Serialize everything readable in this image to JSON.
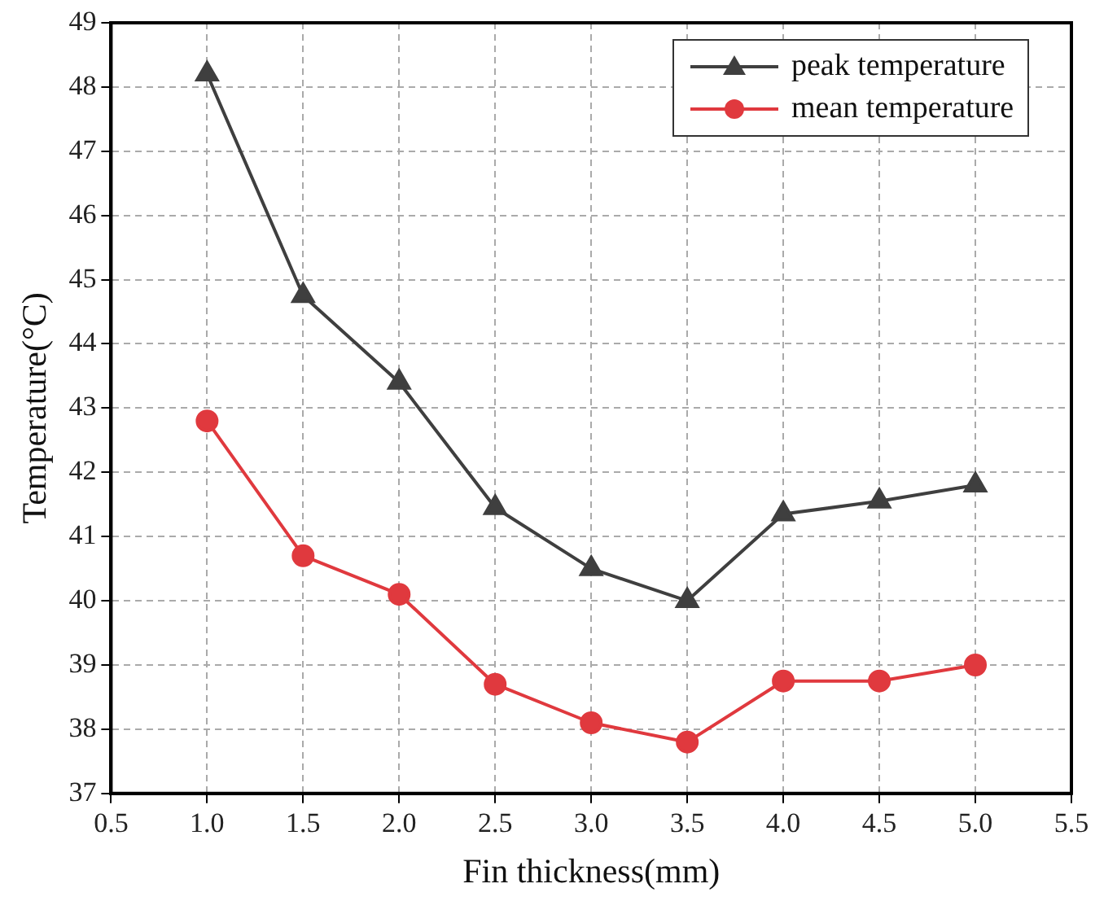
{
  "chart_data": {
    "type": "line",
    "xlabel": "Fin thickness(mm)",
    "ylabel": "Temperature(°C)",
    "x": [
      1.0,
      1.5,
      2.0,
      2.5,
      3.0,
      3.5,
      4.0,
      4.5,
      5.0
    ],
    "series": [
      {
        "name": "peak temperature",
        "color": "#3f3f3f",
        "marker": "triangle",
        "values": [
          48.2,
          44.75,
          43.4,
          41.45,
          40.5,
          40.0,
          41.35,
          41.55,
          41.8
        ]
      },
      {
        "name": "mean temperature",
        "color": "#e0393e",
        "marker": "circle",
        "values": [
          42.8,
          40.7,
          40.1,
          38.7,
          38.1,
          37.8,
          38.75,
          38.75,
          39.0
        ]
      }
    ],
    "xlim": [
      0.5,
      5.5
    ],
    "xticks": [
      {
        "value": 0.5,
        "label": "0.5"
      },
      {
        "value": 1,
        "label": "1.0"
      },
      {
        "value": 1.5,
        "label": "1.5"
      },
      {
        "value": 2,
        "label": "2.0"
      },
      {
        "value": 2.5,
        "label": "2.5"
      },
      {
        "value": 3,
        "label": "3.0"
      },
      {
        "value": 3.5,
        "label": "3.5"
      },
      {
        "value": 4,
        "label": "4.0"
      },
      {
        "value": 4.5,
        "label": "4.5"
      },
      {
        "value": 5,
        "label": "5.0"
      },
      {
        "value": 5.5,
        "label": "5.5"
      }
    ],
    "ylim": [
      37,
      49
    ],
    "yticks": [
      37,
      38,
      39,
      40,
      41,
      42,
      43,
      44,
      45,
      46,
      47,
      48,
      49
    ],
    "grid": true,
    "legend": "top right",
    "line_style": "solid"
  }
}
